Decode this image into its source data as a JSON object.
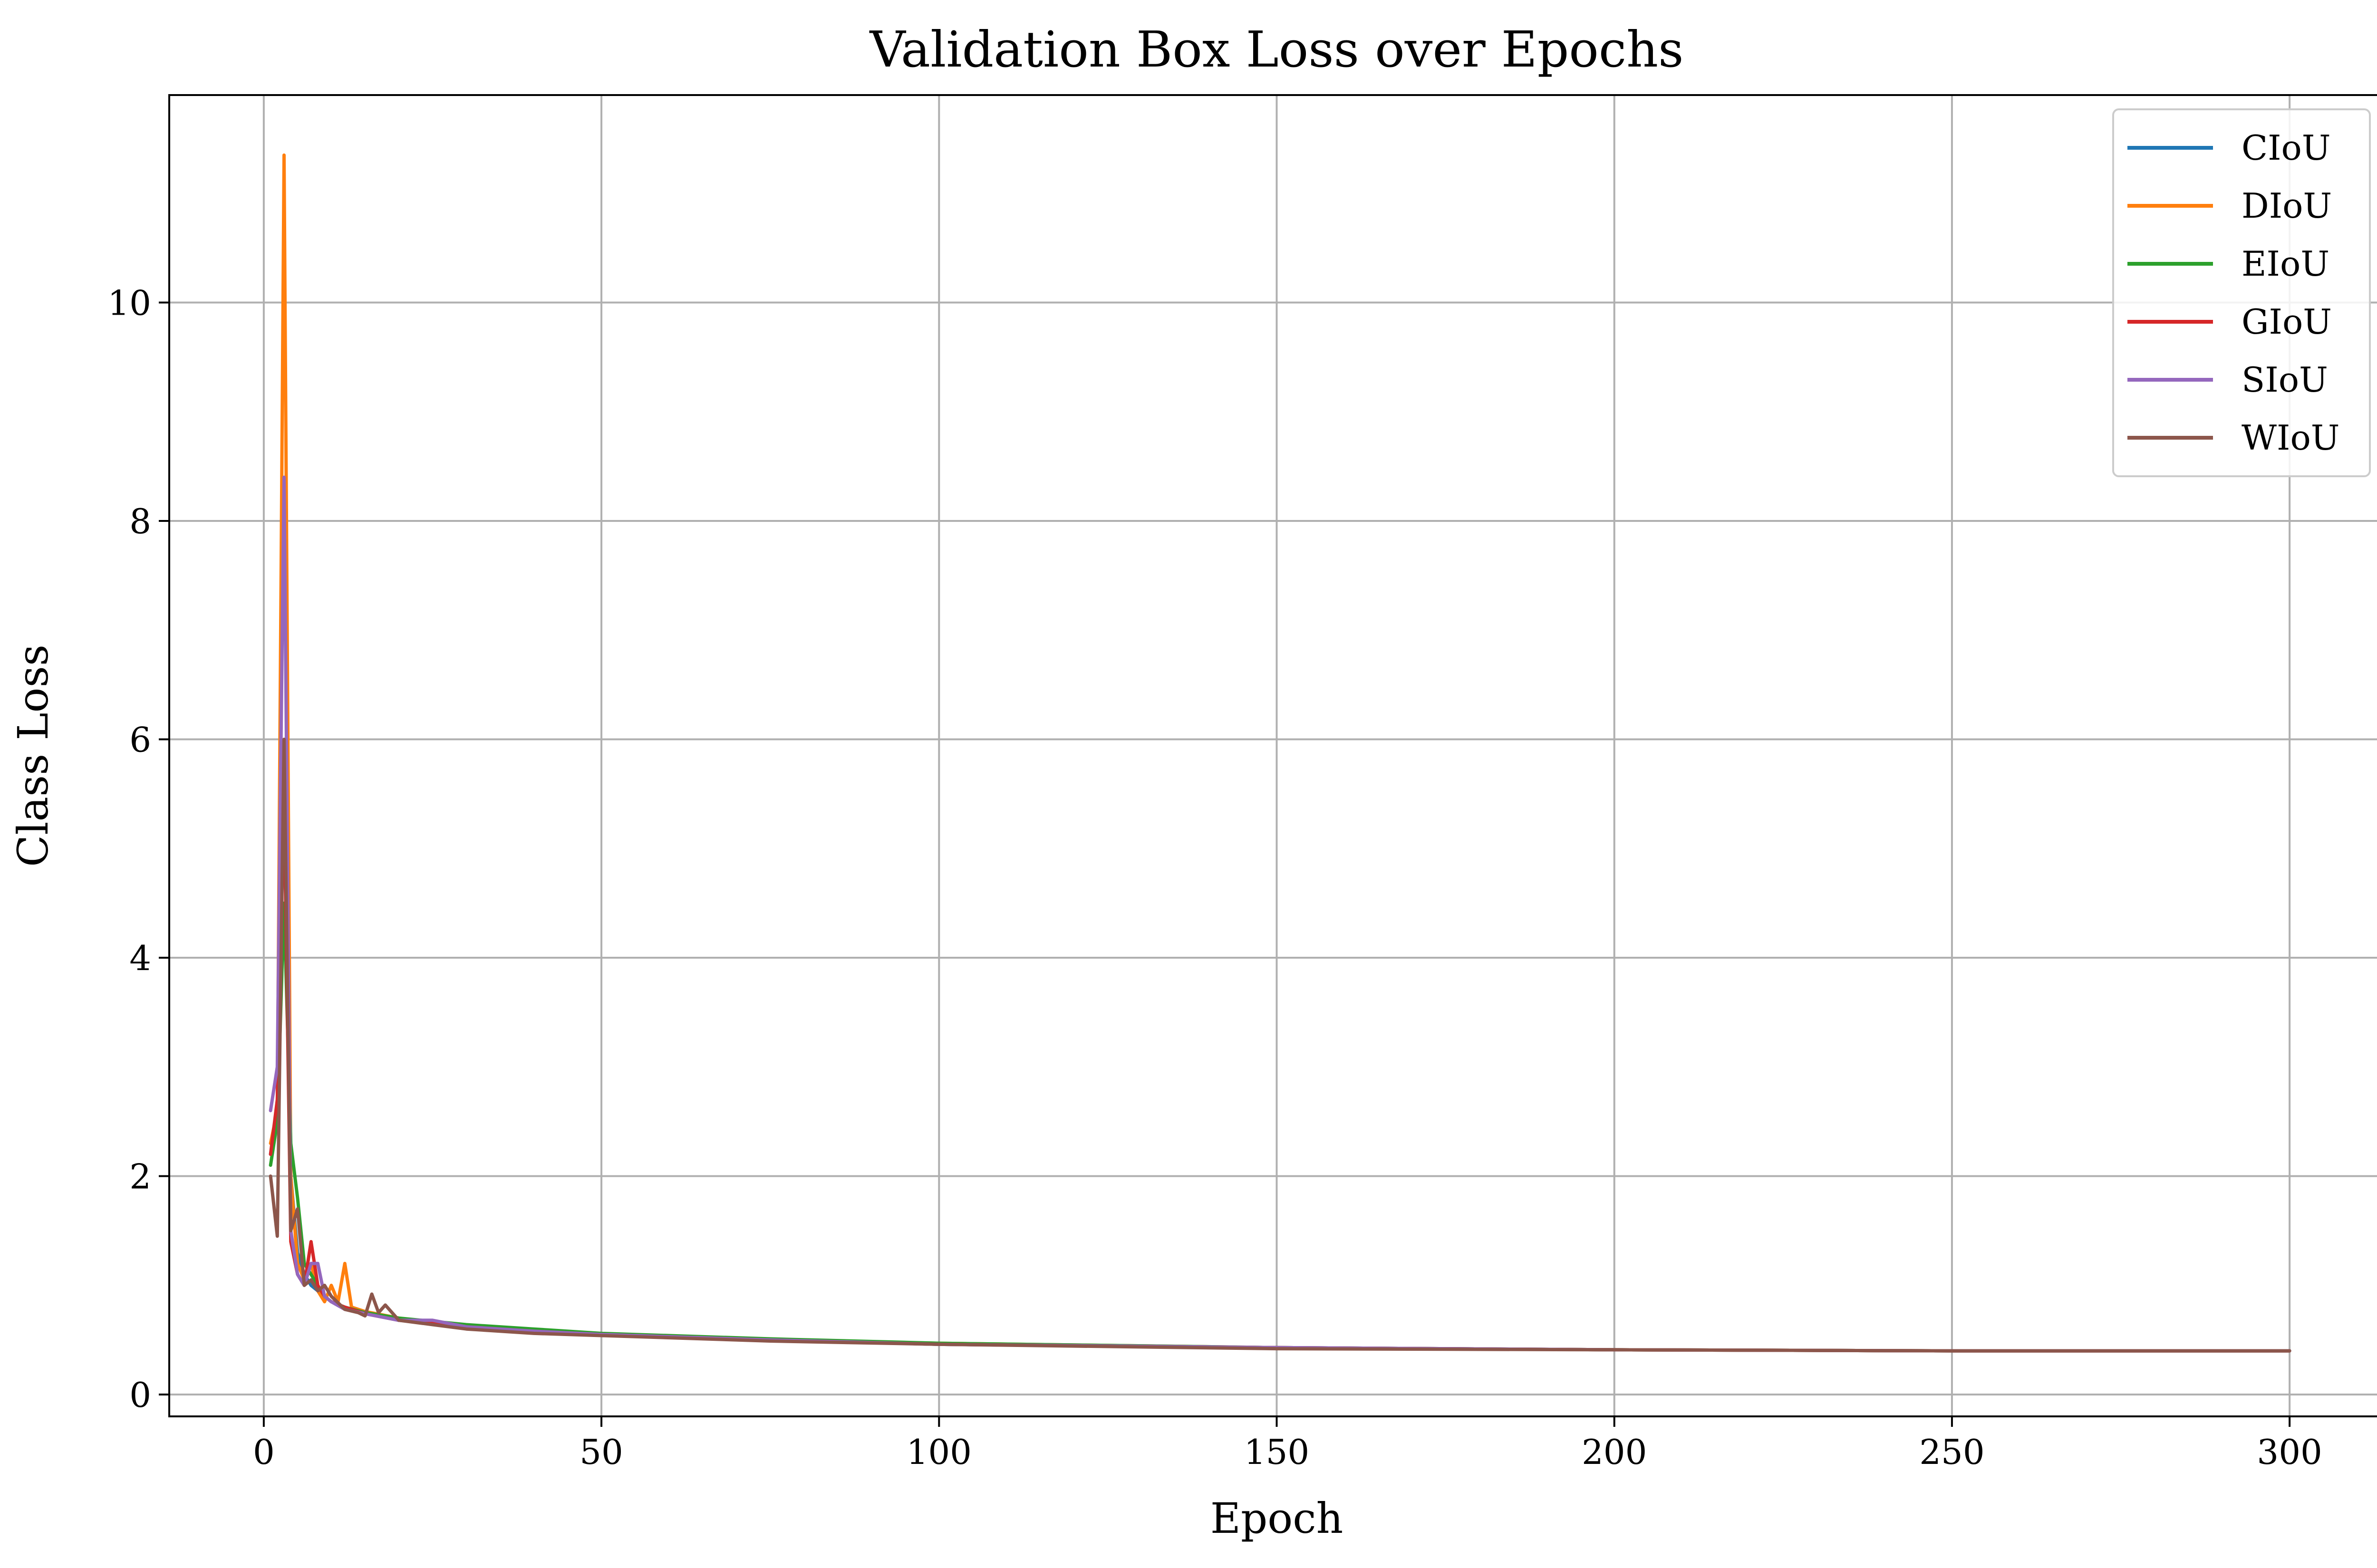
{
  "chart_data": {
    "type": "line",
    "title": "Validation Box Loss over Epochs",
    "xlabel": "Epoch",
    "ylabel": "Class Loss",
    "xlim": [
      -14,
      314
    ],
    "ylim": [
      -0.2,
      11.9
    ],
    "xticks": [
      0,
      50,
      100,
      150,
      200,
      250,
      300
    ],
    "yticks": [
      0,
      2,
      4,
      6,
      8,
      10
    ],
    "grid": true,
    "legend_position": "top-right",
    "series": [
      {
        "name": "CIoU",
        "color": "#1f77b4",
        "x": [
          1,
          2,
          3,
          4,
          5,
          6,
          7,
          8,
          9,
          10,
          12,
          15,
          20,
          30,
          40,
          50,
          75,
          100,
          150,
          200,
          250,
          300
        ],
        "y": [
          2.2,
          2.6,
          5.5,
          2.0,
          1.3,
          1.1,
          1.0,
          0.95,
          0.9,
          0.85,
          0.8,
          0.74,
          0.68,
          0.62,
          0.58,
          0.55,
          0.5,
          0.46,
          0.43,
          0.41,
          0.4,
          0.4
        ]
      },
      {
        "name": "DIoU",
        "color": "#ff7f0e",
        "x": [
          1,
          2,
          3,
          4,
          5,
          6,
          7,
          8,
          9,
          10,
          11,
          12,
          13,
          15,
          20,
          30,
          40,
          50,
          75,
          100,
          150,
          200,
          250,
          300
        ],
        "y": [
          2.3,
          2.6,
          11.35,
          2.0,
          1.2,
          1.05,
          1.2,
          0.95,
          0.85,
          1.0,
          0.85,
          1.2,
          0.8,
          0.76,
          0.7,
          0.62,
          0.58,
          0.55,
          0.5,
          0.47,
          0.43,
          0.41,
          0.4,
          0.4
        ]
      },
      {
        "name": "EIoU",
        "color": "#2ca02c",
        "x": [
          1,
          2,
          3,
          4,
          5,
          6,
          7,
          8,
          9,
          10,
          12,
          15,
          20,
          30,
          40,
          50,
          75,
          100,
          150,
          200,
          250,
          300
        ],
        "y": [
          2.1,
          2.5,
          4.5,
          2.3,
          1.8,
          1.2,
          1.1,
          1.0,
          0.9,
          0.85,
          0.8,
          0.75,
          0.7,
          0.64,
          0.6,
          0.56,
          0.51,
          0.47,
          0.43,
          0.41,
          0.4,
          0.4
        ]
      },
      {
        "name": "GIoU",
        "color": "#d62728",
        "x": [
          1,
          2,
          3,
          4,
          5,
          6,
          7,
          8,
          9,
          10,
          12,
          15,
          20,
          30,
          40,
          50,
          75,
          100,
          150,
          200,
          250,
          300
        ],
        "y": [
          2.2,
          2.7,
          5.5,
          1.4,
          1.1,
          1.0,
          1.4,
          1.0,
          0.9,
          0.85,
          0.8,
          0.74,
          0.68,
          0.62,
          0.58,
          0.55,
          0.5,
          0.46,
          0.43,
          0.41,
          0.4,
          0.4
        ]
      },
      {
        "name": "SIoU",
        "color": "#9467bd",
        "x": [
          1,
          2,
          3,
          4,
          5,
          6,
          7,
          8,
          9,
          10,
          12,
          15,
          20,
          25,
          30,
          40,
          50,
          75,
          100,
          150,
          200,
          250,
          300
        ],
        "y": [
          2.6,
          3.0,
          8.4,
          1.5,
          1.1,
          1.0,
          1.2,
          1.2,
          0.9,
          0.85,
          0.78,
          0.74,
          0.68,
          0.68,
          0.62,
          0.58,
          0.55,
          0.5,
          0.46,
          0.43,
          0.41,
          0.4,
          0.4
        ]
      },
      {
        "name": "WIoU",
        "color": "#8c564b",
        "x": [
          1,
          2,
          3,
          4,
          5,
          6,
          7,
          8,
          9,
          10,
          12,
          14,
          15,
          16,
          17,
          18,
          20,
          25,
          30,
          40,
          50,
          75,
          100,
          150,
          200,
          250,
          300
        ],
        "y": [
          2.0,
          1.45,
          6.0,
          1.5,
          1.7,
          1.0,
          1.05,
          0.95,
          1.0,
          0.9,
          0.78,
          0.75,
          0.72,
          0.92,
          0.75,
          0.82,
          0.68,
          0.64,
          0.6,
          0.56,
          0.54,
          0.49,
          0.46,
          0.42,
          0.41,
          0.4,
          0.4
        ]
      }
    ]
  }
}
